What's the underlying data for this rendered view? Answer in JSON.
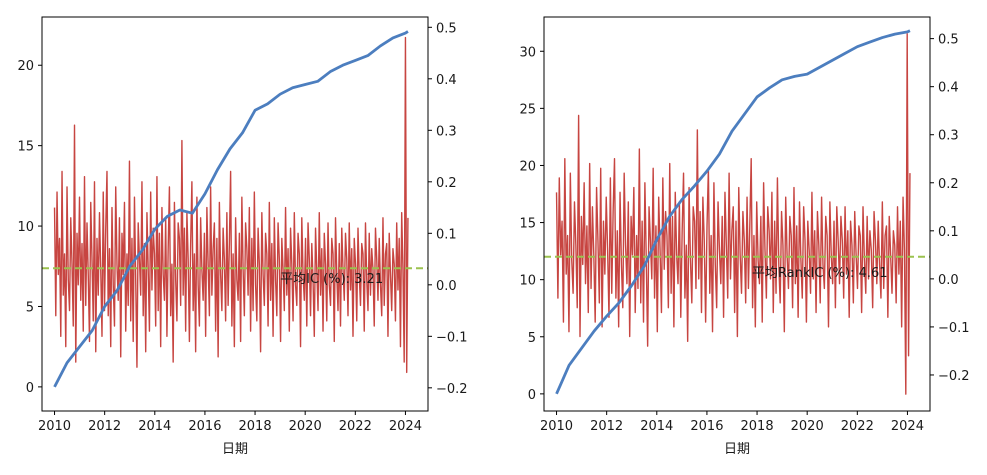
{
  "chart_data": [
    {
      "type": "line",
      "xlabel": "日期",
      "ylabel": "",
      "x_range": [
        2009.5,
        2024.9
      ],
      "left_axis": {
        "ylim": [
          -1.5,
          23.0
        ],
        "ticks": [
          0,
          5,
          10,
          15,
          20
        ]
      },
      "right_axis": {
        "ylim": [
          -0.245,
          0.52
        ],
        "ticks": [
          -0.2,
          -0.1,
          0.0,
          0.1,
          0.2,
          0.3,
          0.4,
          0.5
        ],
        "tick_labels": [
          "−0.2",
          "−0.1",
          "0.0",
          "0.1",
          "0.2",
          "0.3",
          "0.4",
          "0.5"
        ]
      },
      "x_ticks": [
        2010,
        2012,
        2014,
        2016,
        2018,
        2020,
        2022,
        2024
      ],
      "mean_ic": 0.0321,
      "annotation": {
        "text": "平均IC (%): 3.21",
        "x": 2019.0,
        "y": 0.0
      },
      "colors": {
        "cumulative": "#4c7ebf",
        "ic": "#c74541",
        "mean": "#9bc24f"
      },
      "series": [
        {
          "axis": "left",
          "style": "line",
          "x": [
            2010.0,
            2010.5,
            2011.0,
            2011.5,
            2012.0,
            2012.5,
            2013.0,
            2013.5,
            2014.0,
            2014.5,
            2015.0,
            2015.5,
            2016.0,
            2016.5,
            2017.0,
            2017.5,
            2018.0,
            2018.5,
            2019.0,
            2019.5,
            2020.0,
            2020.5,
            2021.0,
            2021.5,
            2022.0,
            2022.5,
            2023.0,
            2023.5,
            2024.0,
            2024.1
          ],
          "values": [
            0.0,
            1.5,
            2.5,
            3.5,
            5.0,
            6.0,
            7.5,
            8.5,
            9.8,
            10.6,
            11.0,
            10.8,
            12.0,
            13.5,
            14.8,
            15.8,
            17.2,
            17.6,
            18.2,
            18.6,
            18.8,
            19.0,
            19.6,
            20.0,
            20.3,
            20.6,
            21.2,
            21.7,
            22.0,
            22.1
          ]
        },
        {
          "axis": "right",
          "style": "ic-bars",
          "x_start": 2010.0,
          "x_end": 2024.1,
          "values": [
            0.15,
            -0.06,
            0.18,
            0.02,
            0.09,
            -0.1,
            0.22,
            -0.02,
            0.06,
            -0.12,
            0.19,
            0.01,
            -0.05,
            0.13,
            0.04,
            -0.08,
            0.31,
            -0.15,
            0.1,
            0.0,
            0.17,
            -0.03,
            0.08,
            -0.09,
            0.21,
            -0.04,
            0.12,
            0.02,
            -0.11,
            0.16,
            0.05,
            -0.07,
            0.2,
            -0.13,
            0.09,
            -0.02,
            0.14,
            0.03,
            -0.1,
            0.18,
            -0.05,
            0.11,
            0.22,
            -0.06,
            0.07,
            -0.12,
            0.15,
            0.0,
            -0.08,
            0.19,
            0.04,
            -0.03,
            0.13,
            -0.14,
            0.1,
            0.02,
            0.16,
            -0.09,
            0.06,
            -0.04,
            0.24,
            -0.07,
            0.09,
            -0.11,
            0.17,
            0.01,
            -0.16,
            0.12,
            0.05,
            -0.02,
            0.2,
            -0.06,
            0.08,
            -0.13,
            0.14,
            0.03,
            -0.09,
            0.18,
            -0.01,
            0.11,
            0.06,
            -0.08,
            0.21,
            -0.05,
            0.1,
            -0.12,
            0.15,
            0.02,
            -0.03,
            0.13,
            -0.1,
            0.07,
            0.19,
            -0.06,
            0.04,
            -0.15,
            0.16,
            0.01,
            -0.07,
            0.12,
            0.09,
            -0.04,
            0.28,
            -0.02,
            0.11,
            -0.09,
            0.14,
            0.05,
            -0.11,
            0.08,
            0.2,
            -0.05,
            0.06,
            -0.13,
            0.17,
            0.0,
            -0.08,
            0.13,
            0.03,
            -0.03,
            0.1,
            -0.1,
            0.15,
            0.04,
            -0.06,
            0.19,
            -0.02,
            0.07,
            0.12,
            -0.09,
            0.09,
            -0.14,
            0.16,
            0.02,
            -0.05,
            0.11,
            0.05,
            -0.07,
            0.14,
            -0.04,
            0.08,
            0.22,
            -0.08,
            0.06,
            -0.12,
            0.13,
            0.01,
            -0.03,
            0.1,
            -0.11,
            0.17,
            0.03,
            -0.06,
            0.12,
            0.07,
            -0.02,
            0.15,
            -0.09,
            0.09,
            -0.05,
            0.18,
            0.0,
            -0.07,
            0.11,
            0.04,
            -0.13,
            0.14,
            0.02,
            -0.04,
            0.1,
            0.06,
            -0.08,
            0.16,
            -0.03,
            0.08,
            -0.1,
            0.13,
            0.01,
            -0.06,
            0.12,
            0.05,
            -0.11,
            0.09,
            0.03,
            -0.05,
            0.15,
            -0.02,
            0.07,
            -0.09,
            0.11,
            0.04,
            -0.07,
            0.14,
            0.0,
            -0.04,
            0.1,
            0.06,
            -0.12,
            0.13,
            0.02,
            -0.03,
            0.09,
            -0.08,
            0.12,
            0.05,
            -0.06,
            0.08,
            0.01,
            -0.1,
            0.11,
            0.03,
            -0.05,
            0.14,
            -0.02,
            0.07,
            -0.09,
            0.1,
            0.04,
            -0.07,
            0.12,
            0.0,
            -0.04,
            0.09,
            0.06,
            -0.11,
            0.13,
            0.02,
            -0.05,
            0.08,
            -0.08,
            0.11,
            0.03,
            -0.03,
            0.1,
            0.05,
            -0.06,
            0.12,
            -0.01,
            0.07,
            -0.1,
            0.09,
            0.04,
            -0.07,
            0.11,
            0.02,
            -0.04,
            0.08,
            0.06,
            -0.09,
            0.12,
            0.01,
            -0.05,
            0.1,
            -0.02,
            0.07,
            0.03,
            -0.08,
            0.11,
            0.05,
            -0.03,
            0.09,
            0.0,
            -0.06,
            0.13,
            -0.04,
            0.06,
            0.08,
            -0.1,
            0.1,
            0.02,
            -0.05,
            0.07,
            0.04,
            -0.07,
            0.12,
            -0.01,
            0.09,
            -0.12,
            0.14,
            0.03,
            -0.15,
            0.48,
            -0.17,
            0.13
          ]
        }
      ]
    },
    {
      "type": "line",
      "xlabel": "日期",
      "ylabel": "",
      "x_range": [
        2009.5,
        2024.9
      ],
      "left_axis": {
        "ylim": [
          -1.5,
          33.0
        ],
        "ticks": [
          0,
          5,
          10,
          15,
          20,
          25,
          30
        ]
      },
      "right_axis": {
        "ylim": [
          -0.275,
          0.545
        ],
        "ticks": [
          -0.2,
          -0.1,
          0.0,
          0.1,
          0.2,
          0.3,
          0.4,
          0.5
        ],
        "tick_labels": [
          "−0.2",
          "−0.1",
          "0.0",
          "0.1",
          "0.2",
          "0.3",
          "0.4",
          "0.5"
        ]
      },
      "x_ticks": [
        2010,
        2012,
        2014,
        2016,
        2018,
        2020,
        2022,
        2024
      ],
      "mean_ic": 0.0461,
      "annotation": {
        "text": "平均RankIC (%): 4.61",
        "x": 2017.8,
        "y": 0.0
      },
      "colors": {
        "cumulative": "#4c7ebf",
        "ic": "#c74541",
        "mean": "#9bc24f"
      },
      "series": [
        {
          "axis": "left",
          "style": "line",
          "x": [
            2010.0,
            2010.5,
            2011.0,
            2011.5,
            2012.0,
            2012.5,
            2013.0,
            2013.5,
            2014.0,
            2014.5,
            2015.0,
            2015.5,
            2016.0,
            2016.5,
            2017.0,
            2017.5,
            2018.0,
            2018.5,
            2019.0,
            2019.5,
            2020.0,
            2020.5,
            2021.0,
            2021.5,
            2022.0,
            2022.5,
            2023.0,
            2023.5,
            2024.0,
            2024.1
          ],
          "values": [
            0.0,
            2.5,
            4.0,
            5.5,
            6.8,
            8.0,
            9.5,
            11.2,
            13.5,
            15.5,
            17.0,
            18.2,
            19.5,
            21.0,
            23.0,
            24.5,
            26.0,
            26.8,
            27.5,
            27.8,
            28.0,
            28.6,
            29.2,
            29.8,
            30.4,
            30.8,
            31.2,
            31.5,
            31.7,
            31.8
          ]
        },
        {
          "axis": "right",
          "style": "ic-bars",
          "x_start": 2010.0,
          "x_end": 2024.1,
          "values": [
            0.18,
            -0.04,
            0.21,
            0.05,
            0.12,
            -0.09,
            0.25,
            0.01,
            0.09,
            -0.11,
            0.22,
            0.04,
            -0.03,
            0.16,
            0.07,
            -0.06,
            0.34,
            -0.12,
            0.13,
            0.03,
            0.2,
            -0.01,
            0.11,
            -0.07,
            0.24,
            -0.02,
            0.15,
            0.05,
            -0.09,
            0.19,
            0.08,
            -0.05,
            0.23,
            -0.1,
            0.12,
            0.01,
            0.17,
            0.06,
            -0.08,
            0.21,
            -0.03,
            0.14,
            0.25,
            -0.04,
            0.1,
            -0.1,
            0.18,
            0.03,
            -0.06,
            0.22,
            0.07,
            -0.01,
            0.16,
            -0.12,
            0.13,
            0.05,
            0.19,
            -0.07,
            0.09,
            -0.02,
            0.27,
            -0.05,
            0.12,
            -0.09,
            0.2,
            0.04,
            -0.14,
            0.15,
            0.08,
            0.0,
            0.23,
            -0.04,
            0.11,
            -0.11,
            0.17,
            0.06,
            -0.07,
            0.21,
            0.02,
            0.14,
            0.09,
            -0.06,
            0.24,
            -0.03,
            0.13,
            -0.1,
            0.18,
            0.05,
            -0.01,
            0.16,
            -0.08,
            0.1,
            0.22,
            -0.04,
            0.07,
            -0.13,
            0.19,
            0.04,
            -0.05,
            0.15,
            0.12,
            -0.02,
            0.31,
            0.0,
            0.14,
            -0.07,
            0.17,
            0.08,
            -0.09,
            0.11,
            0.23,
            -0.03,
            0.09,
            -0.11,
            0.2,
            0.03,
            -0.06,
            0.16,
            0.06,
            -0.01,
            0.13,
            -0.08,
            0.18,
            0.07,
            -0.04,
            0.22,
            0.0,
            0.1,
            0.15,
            -0.07,
            0.12,
            -0.12,
            0.19,
            0.05,
            -0.03,
            0.14,
            0.08,
            -0.05,
            0.17,
            -0.02,
            0.11,
            0.25,
            -0.06,
            0.09,
            -0.1,
            0.16,
            0.04,
            -0.01,
            0.13,
            -0.09,
            0.2,
            0.06,
            -0.04,
            0.15,
            0.1,
            0.0,
            0.18,
            -0.07,
            0.12,
            -0.03,
            0.21,
            0.03,
            -0.05,
            0.14,
            0.07,
            -0.11,
            0.17,
            0.05,
            -0.02,
            0.13,
            0.09,
            -0.06,
            0.19,
            -0.01,
            0.11,
            -0.08,
            0.16,
            0.04,
            -0.04,
            0.15,
            0.08,
            -0.09,
            0.12,
            0.06,
            -0.03,
            0.18,
            0.0,
            0.1,
            -0.07,
            0.14,
            0.07,
            -0.05,
            0.17,
            0.03,
            -0.02,
            0.13,
            0.09,
            -0.1,
            0.16,
            0.05,
            -0.01,
            0.12,
            -0.06,
            0.15,
            0.08,
            -0.01,
            0.13,
            0.08,
            -0.04,
            0.15,
            0.01,
            0.1,
            -0.08,
            0.12,
            0.07,
            -0.05,
            0.14,
            0.05,
            -0.02,
            0.11,
            0.09,
            -0.07,
            0.15,
            0.04,
            -0.03,
            0.13,
            0.0,
            0.1,
            0.06,
            -0.06,
            0.14,
            0.08,
            -0.01,
            0.12,
            0.03,
            -0.04,
            0.16,
            -0.02,
            0.09,
            0.11,
            -0.08,
            0.13,
            0.05,
            -0.03,
            0.1,
            0.07,
            -0.05,
            0.15,
            0.01,
            0.12,
            -0.1,
            0.17,
            0.06,
            -0.24,
            0.51,
            -0.16,
            0.22
          ]
        }
      ]
    }
  ]
}
